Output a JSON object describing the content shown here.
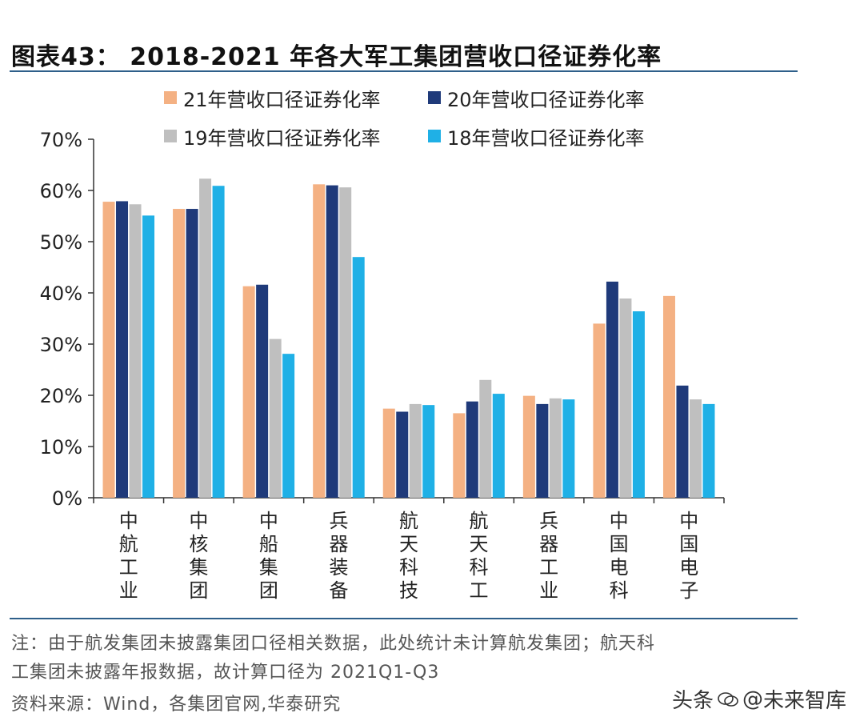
{
  "header": {
    "title": "图表43： 2018-2021 年各大军工集团营收口径证券化率"
  },
  "colors": {
    "rule": "#2e5f8a",
    "axis": "#333333",
    "series": [
      "#f4b183",
      "#1f3a7a",
      "#bfbfbf",
      "#1fb0e6"
    ]
  },
  "chart_data": {
    "type": "bar",
    "title": "2018-2021 年各大军工集团营收口径证券化率",
    "xlabel": "",
    "ylabel": "",
    "ylim": [
      0,
      70
    ],
    "yticks": [
      0,
      10,
      20,
      30,
      40,
      50,
      60,
      70
    ],
    "ytick_labels": [
      "0%",
      "10%",
      "20%",
      "30%",
      "40%",
      "50%",
      "60%",
      "70%"
    ],
    "categories": [
      "中航工业",
      "中核集团",
      "中船集团",
      "兵器装备",
      "航天科技",
      "航天科工",
      "兵器工业",
      "中国电科",
      "中国电子"
    ],
    "series": [
      {
        "name": "21年营收口径证券化率",
        "values": [
          57.8,
          56.4,
          41.3,
          61.2,
          17.4,
          16.5,
          19.9,
          34.0,
          39.4
        ]
      },
      {
        "name": "20年营收口径证券化率",
        "values": [
          57.9,
          56.4,
          41.6,
          61.0,
          16.8,
          18.8,
          18.3,
          42.2,
          21.9
        ]
      },
      {
        "name": "19年营收口径证券化率",
        "values": [
          57.3,
          62.3,
          31.0,
          60.6,
          18.3,
          23.0,
          19.4,
          38.9,
          19.2
        ]
      },
      {
        "name": "18年营收口径证券化率",
        "values": [
          55.1,
          60.9,
          28.1,
          47.0,
          18.1,
          20.3,
          19.2,
          36.4,
          18.3
        ]
      }
    ],
    "legend_position": "top",
    "grid": false
  },
  "footer": {
    "note_line1": "注：由于航发集团未披露集团口径相关数据，此处统计未计算航发集团；航天科",
    "note_line2": "工集团未披露年报数据，故计算口径为 2021Q1-Q3",
    "source": "资料来源：Wind，各集团官网,华泰研究"
  },
  "watermark": {
    "prefix": "头条",
    "at": "@",
    "name": "未来智库"
  }
}
